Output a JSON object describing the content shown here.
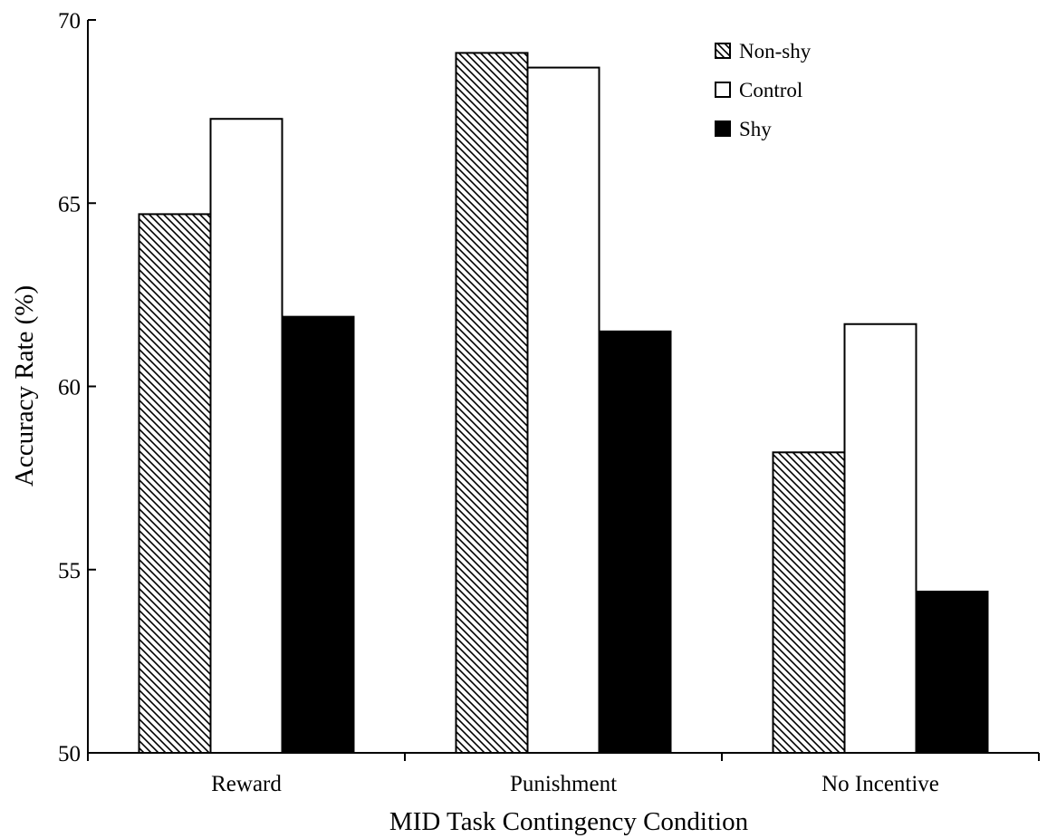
{
  "chart_data": {
    "type": "bar",
    "title": "",
    "xlabel": "MID Task Contingency Condition",
    "ylabel": "Accuracy Rate (%)",
    "categories": [
      "Reward",
      "Punishment",
      "No Incentive"
    ],
    "ylim": [
      50,
      70
    ],
    "yticks": [
      50,
      55,
      60,
      65,
      70
    ],
    "grid": false,
    "legend_position": "top-right",
    "series": [
      {
        "name": "Non-shy",
        "fill": "hatched",
        "values": [
          64.7,
          69.1,
          58.2
        ]
      },
      {
        "name": "Control",
        "fill": "white",
        "values": [
          67.3,
          68.7,
          61.7
        ]
      },
      {
        "name": "Shy",
        "fill": "black",
        "values": [
          61.9,
          61.5,
          54.4
        ]
      }
    ]
  }
}
